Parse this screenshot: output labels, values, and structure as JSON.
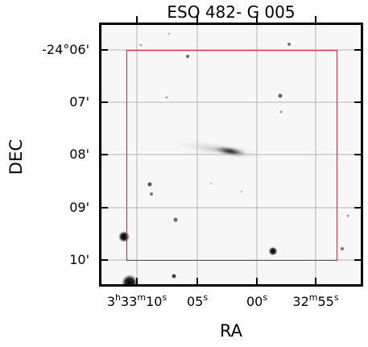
{
  "title": "ESO 482- G 005",
  "xaxis": {
    "title": "RA",
    "ticks": [
      {
        "h": "3",
        "m": "33",
        "s": "10"
      },
      {
        "h": "",
        "m": "",
        "s": "05"
      },
      {
        "h": "",
        "m": "",
        "s": "00"
      },
      {
        "h": "",
        "m": "32",
        "s": "55"
      }
    ]
  },
  "yaxis": {
    "title": "DEC",
    "ticks": [
      "-24°06'",
      "07'",
      "08'",
      "09'",
      "10'"
    ]
  },
  "colors": {
    "background": "#f7f7f7",
    "frame": "#000000",
    "grid": "#b3b3b3",
    "footprint": "#d62728",
    "sources": "#111111"
  }
}
